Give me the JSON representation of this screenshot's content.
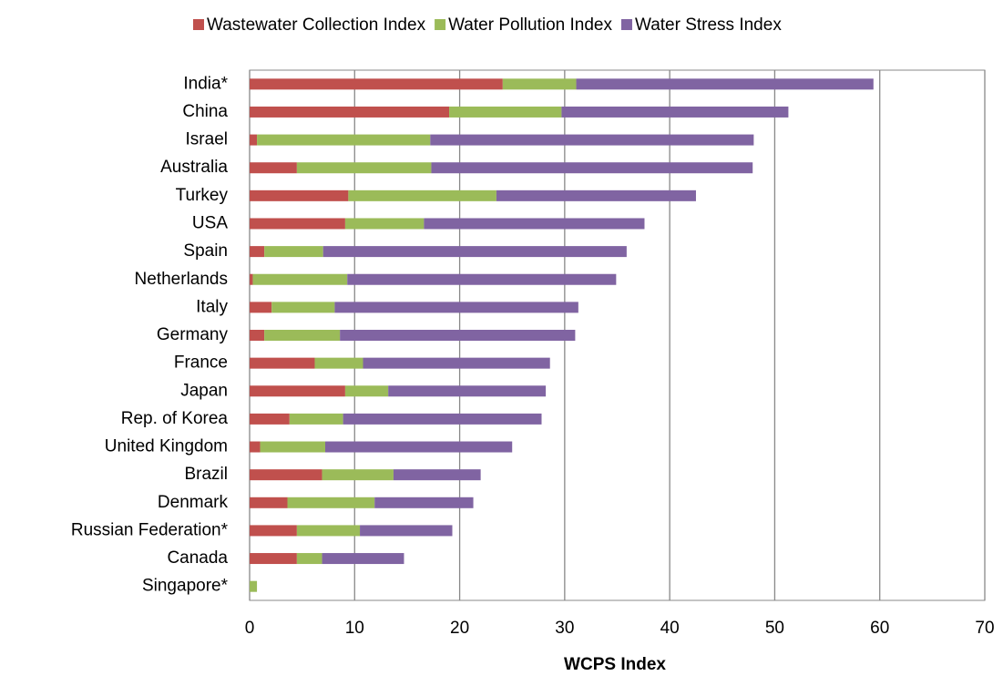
{
  "chart_data": {
    "type": "stacked-hbar",
    "x_label": "WCPS Index",
    "categories": [
      "India*",
      "China",
      "Israel",
      "Australia",
      "Turkey",
      "USA",
      "Spain",
      "Netherlands",
      "Italy",
      "Germany",
      "France",
      "Japan",
      "Rep. of Korea",
      "United Kingdom",
      "Brazil",
      "Denmark",
      "Russian Federation*",
      "Canada",
      "Singapore*"
    ],
    "series": [
      {
        "name": "Wastewater Collection Index",
        "color": "#c0504d",
        "values": [
          24.1,
          19.0,
          0.7,
          4.5,
          9.4,
          9.1,
          1.4,
          0.3,
          2.1,
          1.4,
          6.2,
          9.1,
          3.8,
          1.0,
          6.9,
          3.6,
          4.5,
          4.5,
          0
        ]
      },
      {
        "name": "Water Pollution Index",
        "color": "#9bbb59",
        "values": [
          7.0,
          10.7,
          16.5,
          12.8,
          14.1,
          7.5,
          5.6,
          9.0,
          6.0,
          7.2,
          4.6,
          4.1,
          5.1,
          6.2,
          6.8,
          8.3,
          6.0,
          2.4,
          0.7
        ]
      },
      {
        "name": "Water Stress Index",
        "color": "#8064a2",
        "values": [
          28.3,
          21.6,
          30.8,
          30.6,
          19.0,
          21.0,
          28.9,
          25.6,
          23.2,
          22.4,
          17.8,
          15.0,
          18.9,
          17.8,
          8.3,
          9.4,
          8.8,
          7.8,
          0
        ]
      }
    ],
    "xlim": [
      0,
      70
    ],
    "xticks": [
      0,
      10,
      20,
      30,
      40,
      50,
      60,
      70
    ],
    "grid": true
  }
}
